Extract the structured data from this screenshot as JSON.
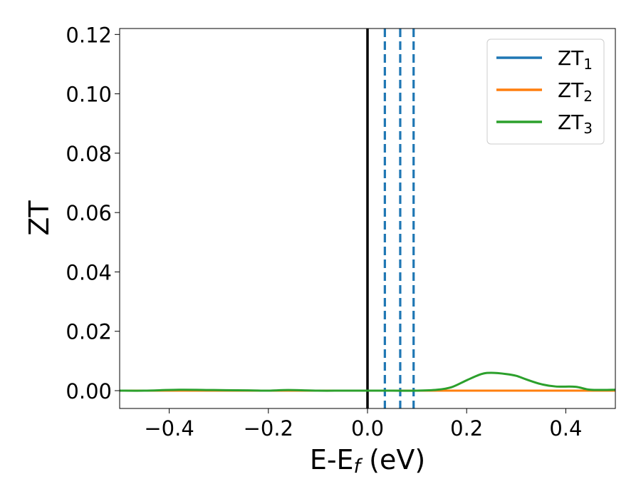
{
  "chart_data": {
    "type": "line",
    "xlabel": "E-E",
    "xlabel_sub": "f",
    "xlabel_unit": " (eV)",
    "ylabel": "ZT",
    "xlim": [
      -0.5,
      0.5
    ],
    "ylim": [
      -0.006,
      0.122
    ],
    "x_ticks": [
      -0.4,
      -0.2,
      0.0,
      0.2,
      0.4
    ],
    "x_tick_labels": [
      "−0.4",
      "−0.2",
      "0.0",
      "0.2",
      "0.4"
    ],
    "y_ticks": [
      0.0,
      0.02,
      0.04,
      0.06,
      0.08,
      0.1,
      0.12
    ],
    "y_tick_labels": [
      "0.00",
      "0.02",
      "0.04",
      "0.06",
      "0.08",
      "0.10",
      "0.12"
    ],
    "grid": false,
    "legend_position": "top-right",
    "series": [
      {
        "name": "ZT",
        "sub": "1",
        "color": "#1f77b4",
        "x": [
          -0.5,
          -0.4,
          -0.3,
          -0.2,
          -0.1,
          0.0,
          0.1,
          0.15,
          0.2,
          0.25,
          0.3,
          0.35,
          0.4,
          0.45,
          0.5
        ],
        "y": [
          0.0,
          0.0,
          0.0,
          0.0,
          0.0,
          0.0,
          0.0,
          0.0,
          0.0,
          0.0,
          0.0,
          0.0,
          0.0,
          0.0,
          0.0
        ]
      },
      {
        "name": "ZT",
        "sub": "2",
        "color": "#ff7f0e",
        "x": [
          -0.5,
          -0.4,
          -0.3,
          -0.2,
          -0.1,
          0.0,
          0.1,
          0.15,
          0.2,
          0.25,
          0.3,
          0.35,
          0.4,
          0.45,
          0.5
        ],
        "y": [
          0.0,
          0.0,
          0.0,
          0.0,
          0.0,
          0.0,
          0.0,
          0.0,
          0.0,
          0.0,
          0.0,
          0.0,
          0.0,
          0.0,
          0.0
        ]
      },
      {
        "name": "ZT",
        "sub": "3",
        "color": "#2ca02c",
        "x": [
          -0.5,
          -0.45,
          -0.38,
          -0.31,
          -0.24,
          -0.2,
          -0.16,
          -0.1,
          -0.05,
          0.0,
          0.05,
          0.1,
          0.14,
          0.17,
          0.2,
          0.23,
          0.25,
          0.28,
          0.3,
          0.32,
          0.35,
          0.38,
          0.42,
          0.45,
          0.5
        ],
        "y": [
          0.0,
          0.0,
          0.0003,
          0.0002,
          0.0001,
          0.0,
          0.0002,
          0.0,
          0.0,
          0.0,
          0.0,
          0.0,
          0.0003,
          0.0012,
          0.0035,
          0.0056,
          0.006,
          0.0056,
          0.005,
          0.0038,
          0.0022,
          0.0014,
          0.0013,
          0.0003,
          0.0003
        ]
      }
    ],
    "vlines": [
      {
        "x": 0.0,
        "color": "#000000",
        "style": "solid"
      },
      {
        "x": 0.035,
        "color": "#1f77b4",
        "style": "dashed"
      },
      {
        "x": 0.066,
        "color": "#1f77b4",
        "style": "dashed"
      },
      {
        "x": 0.093,
        "color": "#1f77b4",
        "style": "dashed"
      }
    ]
  }
}
